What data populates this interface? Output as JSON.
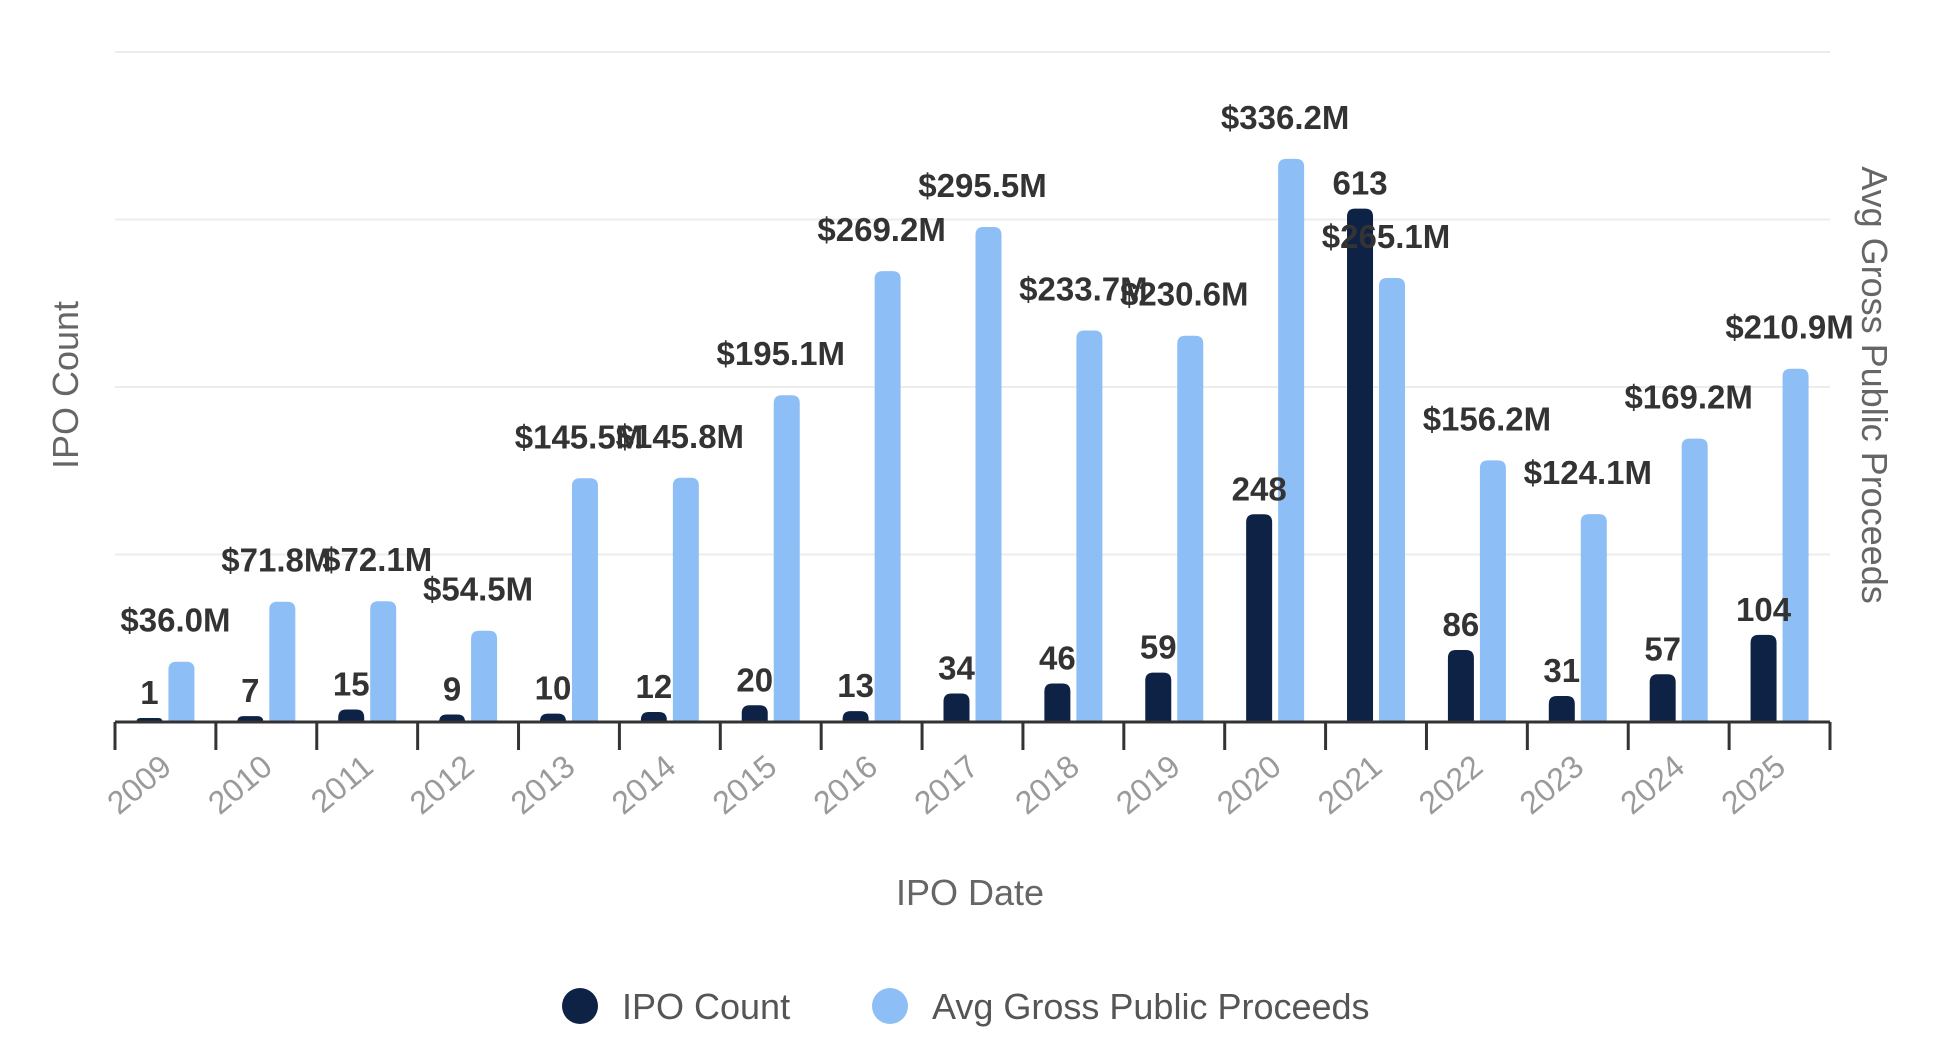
{
  "chart_data": {
    "type": "bar",
    "title": "",
    "xlabel": "IPO Date",
    "ylabel_left": "IPO Count",
    "ylabel_right": "Avg Gross Public Proceeds",
    "grid": true,
    "legend_position": "bottom-center",
    "categories": [
      "2009",
      "2010",
      "2011",
      "2012",
      "2013",
      "2014",
      "2015",
      "2016",
      "2017",
      "2018",
      "2019",
      "2020",
      "2021",
      "2022",
      "2023",
      "2024",
      "2025"
    ],
    "series": [
      {
        "name": "IPO Count",
        "axis": "left",
        "color": "#0d2245",
        "ylim": [
          0,
          800
        ],
        "values": [
          1,
          7,
          15,
          9,
          10,
          12,
          20,
          13,
          34,
          46,
          59,
          248,
          613,
          86,
          31,
          57,
          104
        ],
        "labels": [
          "1",
          "7",
          "15",
          "9",
          "10",
          "12",
          "20",
          "13",
          "34",
          "46",
          "59",
          "248",
          "613",
          "86",
          "31",
          "57",
          "104"
        ]
      },
      {
        "name": "Avg Gross Public Proceeds",
        "axis": "right",
        "color": "#8dbef5",
        "ylim": [
          0,
          400
        ],
        "values": [
          36.0,
          71.8,
          72.1,
          54.5,
          145.5,
          145.8,
          195.1,
          269.2,
          295.5,
          233.7,
          230.6,
          336.2,
          265.1,
          156.2,
          124.1,
          169.2,
          210.9
        ],
        "labels": [
          "$36.0M",
          "$71.8M",
          "$72.1M",
          "$54.5M",
          "$145.5M",
          "$145.8M",
          "$195.1M",
          "$269.2M",
          "$295.5M",
          "$233.7M",
          "$230.6M",
          "$336.2M",
          "$265.1M",
          "$156.2M",
          "$124.1M",
          "$169.2M",
          "$210.9M"
        ]
      }
    ]
  }
}
